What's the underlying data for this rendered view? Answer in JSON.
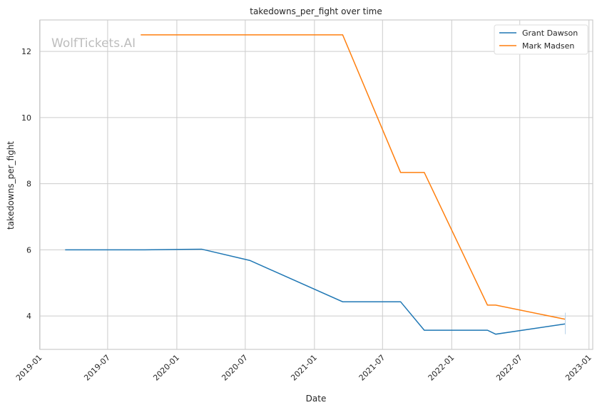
{
  "chart_data": {
    "type": "line",
    "title": "takedowns_per_fight over time",
    "xlabel": "Date",
    "ylabel": "takedowns_per_fight",
    "watermark": "WolfTickets.AI",
    "xlim": [
      "2019-01-02",
      "2023-01-11"
    ],
    "ylim": [
      2.99,
      12.95
    ],
    "xticks": [
      "2019-01",
      "2019-07",
      "2020-01",
      "2020-07",
      "2021-01",
      "2021-07",
      "2022-01",
      "2022-07",
      "2023-01"
    ],
    "yticks": [
      4,
      6,
      8,
      10,
      12
    ],
    "grid": true,
    "legend_position": "top-right",
    "series": [
      {
        "name": "Grant Dawson",
        "color": "#1f77b4",
        "points": [
          [
            "2019-03-10",
            6.0
          ],
          [
            "2019-10-08",
            6.0
          ],
          [
            "2020-03-07",
            6.02
          ],
          [
            "2020-07-13",
            5.68
          ],
          [
            "2021-03-17",
            4.43
          ],
          [
            "2021-08-18",
            4.43
          ],
          [
            "2021-10-20",
            3.57
          ],
          [
            "2022-04-06",
            3.57
          ],
          [
            "2022-04-28",
            3.45
          ],
          [
            "2022-10-30",
            3.76
          ]
        ]
      },
      {
        "name": "Mark Madsen",
        "color": "#ff7f0e",
        "points": [
          [
            "2019-09-27",
            12.5
          ],
          [
            "2021-03-17",
            12.5
          ],
          [
            "2021-08-18",
            8.34
          ],
          [
            "2021-10-20",
            8.34
          ],
          [
            "2022-04-06",
            4.33
          ],
          [
            "2022-04-28",
            4.33
          ],
          [
            "2022-10-30",
            3.9
          ]
        ]
      }
    ]
  }
}
